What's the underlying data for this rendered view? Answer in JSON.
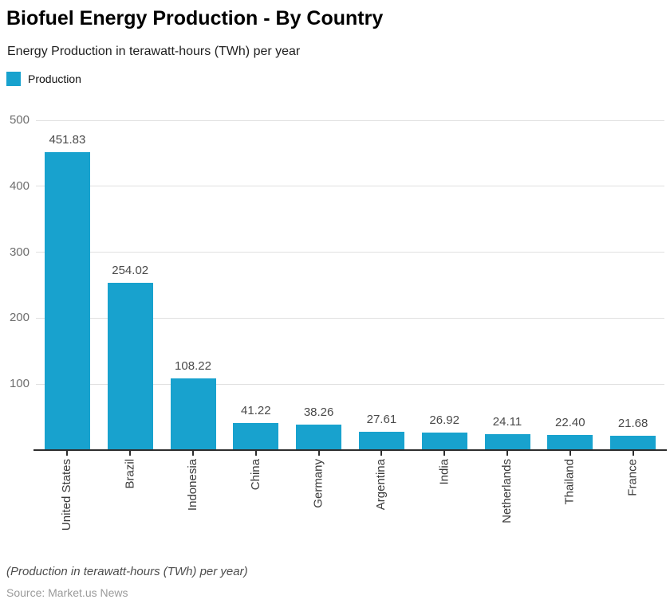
{
  "chart_data": {
    "type": "bar",
    "title": "Biofuel Energy Production - By Country",
    "subtitle": "Energy Production in terawatt-hours (TWh) per year",
    "series_name": "Production",
    "categories": [
      "United States",
      "Brazil",
      "Indonesia",
      "China",
      "Germany",
      "Argentina",
      "India",
      "Netherlands",
      "Thailand",
      "France"
    ],
    "values": [
      451.83,
      254.02,
      108.22,
      41.22,
      38.26,
      27.61,
      26.92,
      24.11,
      22.4,
      21.68
    ],
    "value_labels": [
      "451.83",
      "254.02",
      "108.22",
      "41.22",
      "38.26",
      "27.61",
      "26.92",
      "24.11",
      "22.40",
      "21.68"
    ],
    "xlabel": "",
    "ylabel": "",
    "ylim": [
      0,
      500
    ],
    "yticks": [
      100,
      200,
      300,
      400,
      500
    ],
    "grid": true,
    "legend_position": "top-left",
    "bar_color": "#18a2ce"
  },
  "footer": {
    "note": "(Production in terawatt-hours (TWh) per year)",
    "source": "Source: Market.us News"
  },
  "colors": {
    "bar": "#18a2ce",
    "gridline": "#e0e0e0",
    "axis": "#2d2d2d",
    "tick_label": "#6e6e6e",
    "value_label": "#4a4a4a",
    "category_label": "#3b3b3b",
    "title": "#000000",
    "subtitle": "#1f1f1f",
    "note": "#4d4d4d",
    "source": "#9a9a9a"
  }
}
